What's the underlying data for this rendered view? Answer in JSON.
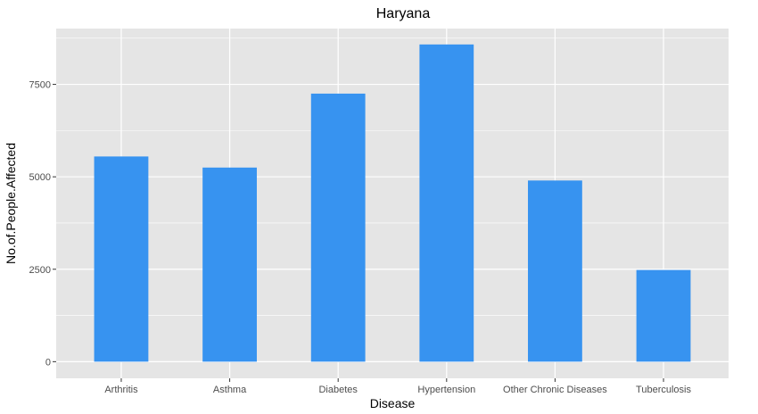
{
  "chart_data": {
    "type": "bar",
    "title": "Haryana",
    "xlabel": "Disease",
    "ylabel": "No.of.People.Affected",
    "categories": [
      "Arthritis",
      "Asthma",
      "Diabetes",
      "Hypertension",
      "Other Chronic Diseases",
      "Tuberculosis"
    ],
    "values": [
      5550,
      5250,
      7250,
      8580,
      4900,
      2480
    ],
    "ylim": [
      -450,
      9010
    ],
    "yticks": [
      0,
      2500,
      5000,
      7500
    ],
    "ytick_labels": [
      "0",
      "2500",
      "5000",
      "7500"
    ],
    "grid": true,
    "legend": "none",
    "colors": {
      "bar": "#3793F0",
      "panel": "#E5E5E5",
      "grid": "#FFFFFF"
    }
  }
}
